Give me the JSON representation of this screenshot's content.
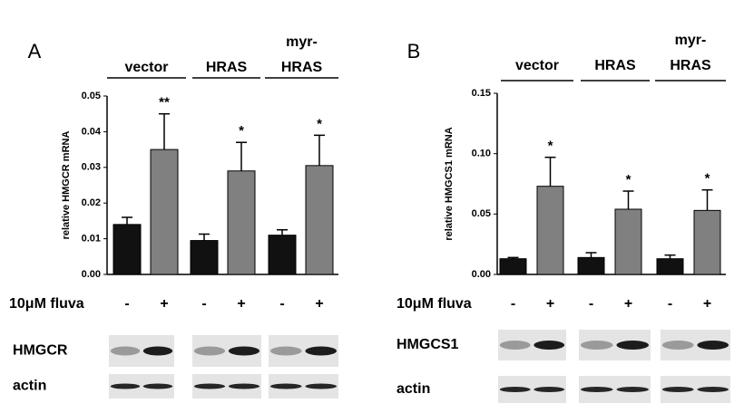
{
  "chart_data": [
    {
      "type": "bar",
      "panel": "A",
      "ylabel": "relative HMGCR mRNA",
      "groups": [
        [
          "vector"
        ],
        [
          "HRAS"
        ],
        [
          "myr-",
          "HRAS"
        ]
      ],
      "treatment_label": "10μM fluva",
      "treatment": [
        "-",
        "+",
        "-",
        "+",
        "-",
        "+"
      ],
      "values": [
        0.014,
        0.035,
        0.0095,
        0.029,
        0.011,
        0.0305
      ],
      "errors": [
        0.002,
        0.01,
        0.0018,
        0.008,
        0.0015,
        0.0085
      ],
      "significance": [
        null,
        "**",
        null,
        "*",
        null,
        "*"
      ],
      "colors": [
        "#111111",
        "#808080",
        "#111111",
        "#808080",
        "#111111",
        "#808080"
      ],
      "ylim": [
        0,
        0.05
      ],
      "yticks": [
        {
          "value": 0,
          "label": "0.00"
        },
        0.01,
        0.02,
        0.03,
        0.04,
        0.05
      ],
      "blots": [
        "HMGCR",
        "actin"
      ]
    },
    {
      "type": "bar",
      "panel": "B",
      "ylabel": "relative HMGCS1 mRNA",
      "groups": [
        [
          "vector"
        ],
        [
          "HRAS"
        ],
        [
          "myr-",
          "HRAS"
        ]
      ],
      "treatment_label": "10μM fluva",
      "treatment": [
        "-",
        "+",
        "-",
        "+",
        "-",
        "+"
      ],
      "values": [
        0.013,
        0.073,
        0.014,
        0.054,
        0.013,
        0.053
      ],
      "errors": [
        0.001,
        0.024,
        0.004,
        0.015,
        0.003,
        0.017
      ],
      "significance": [
        null,
        "*",
        null,
        "*",
        null,
        "*"
      ],
      "colors": [
        "#111111",
        "#808080",
        "#111111",
        "#808080",
        "#111111",
        "#808080"
      ],
      "ylim": [
        0,
        0.15
      ],
      "yticks": [
        {
          "value": 0,
          "label": "0.00"
        },
        0.05,
        {
          "value": 0.1,
          "label": "0.10"
        },
        0.15
      ],
      "blots": [
        "HMGCS1",
        "actin"
      ]
    }
  ]
}
